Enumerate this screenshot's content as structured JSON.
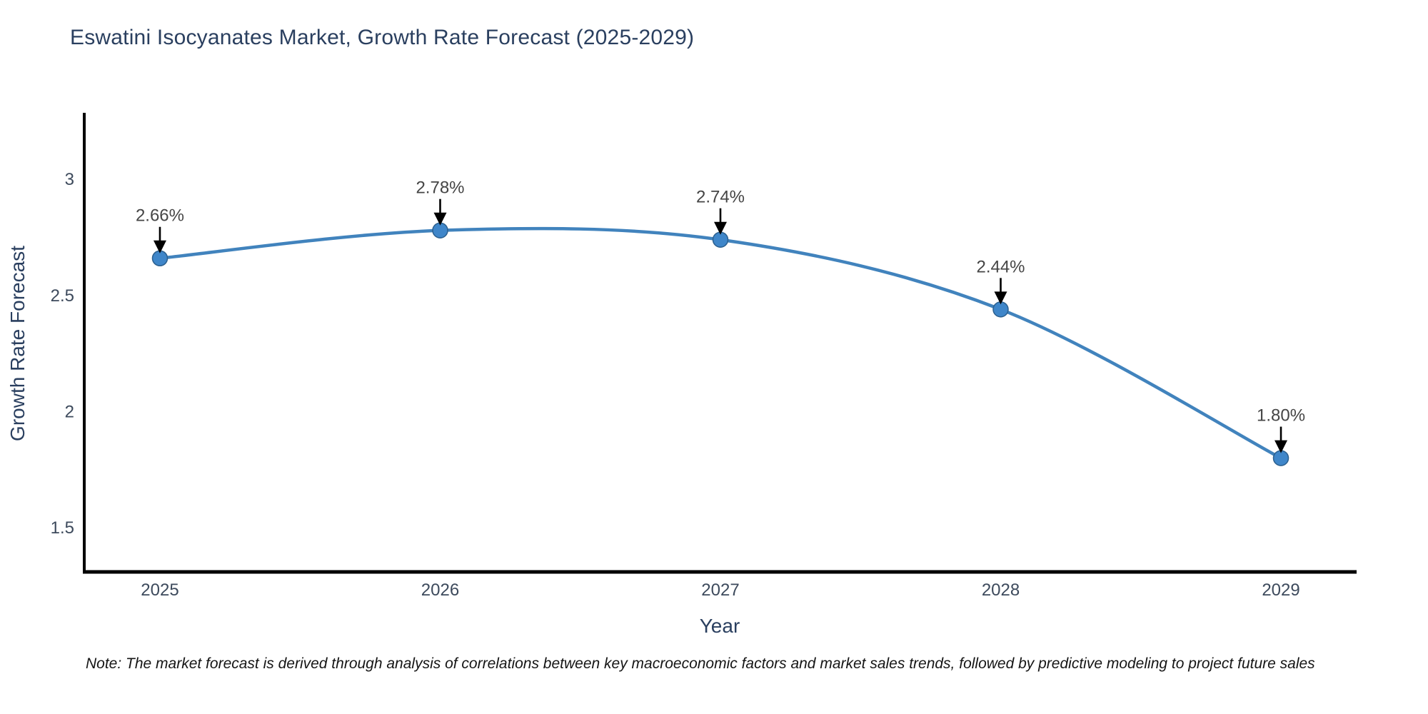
{
  "title": "Eswatini Isocyanates Market, Growth Rate Forecast (2025-2029)",
  "note": "Note: The market forecast is derived through analysis of correlations between key macroeconomic factors and market sales trends, followed by predictive modeling to project future sales",
  "chart_data": {
    "type": "line",
    "title": "Eswatini Isocyanates Market, Growth Rate Forecast (2025-2029)",
    "x": [
      2025,
      2026,
      2027,
      2028,
      2029
    ],
    "values": [
      2.66,
      2.78,
      2.74,
      2.44,
      1.8
    ],
    "point_labels": [
      "2.66%",
      "2.78%",
      "2.74%",
      "2.44%",
      "1.80%"
    ],
    "xlabel": "Year",
    "ylabel": "Growth Rate Forecast",
    "xtick_labels": [
      "2025",
      "2026",
      "2027",
      "2028",
      "2029"
    ],
    "yticks": [
      1.5,
      2,
      2.5,
      3
    ],
    "ytick_labels": [
      "1.5",
      "2",
      "2.5",
      "3"
    ],
    "xlim": [
      2024.73,
      2029.27
    ],
    "ylim": [
      1.31,
      3.28
    ],
    "grid": false,
    "legend_position": "none",
    "line_smoothing": "spline",
    "colors": {
      "line": "#4183bd",
      "marker_fill": "#3f86c9",
      "marker_stroke": "#2b5f8e",
      "axis": "#000000",
      "arrow": "#000000",
      "annotation_text": "#454545",
      "title_text": "#2a3f5f",
      "tick_text": "#3d4a5c"
    }
  }
}
